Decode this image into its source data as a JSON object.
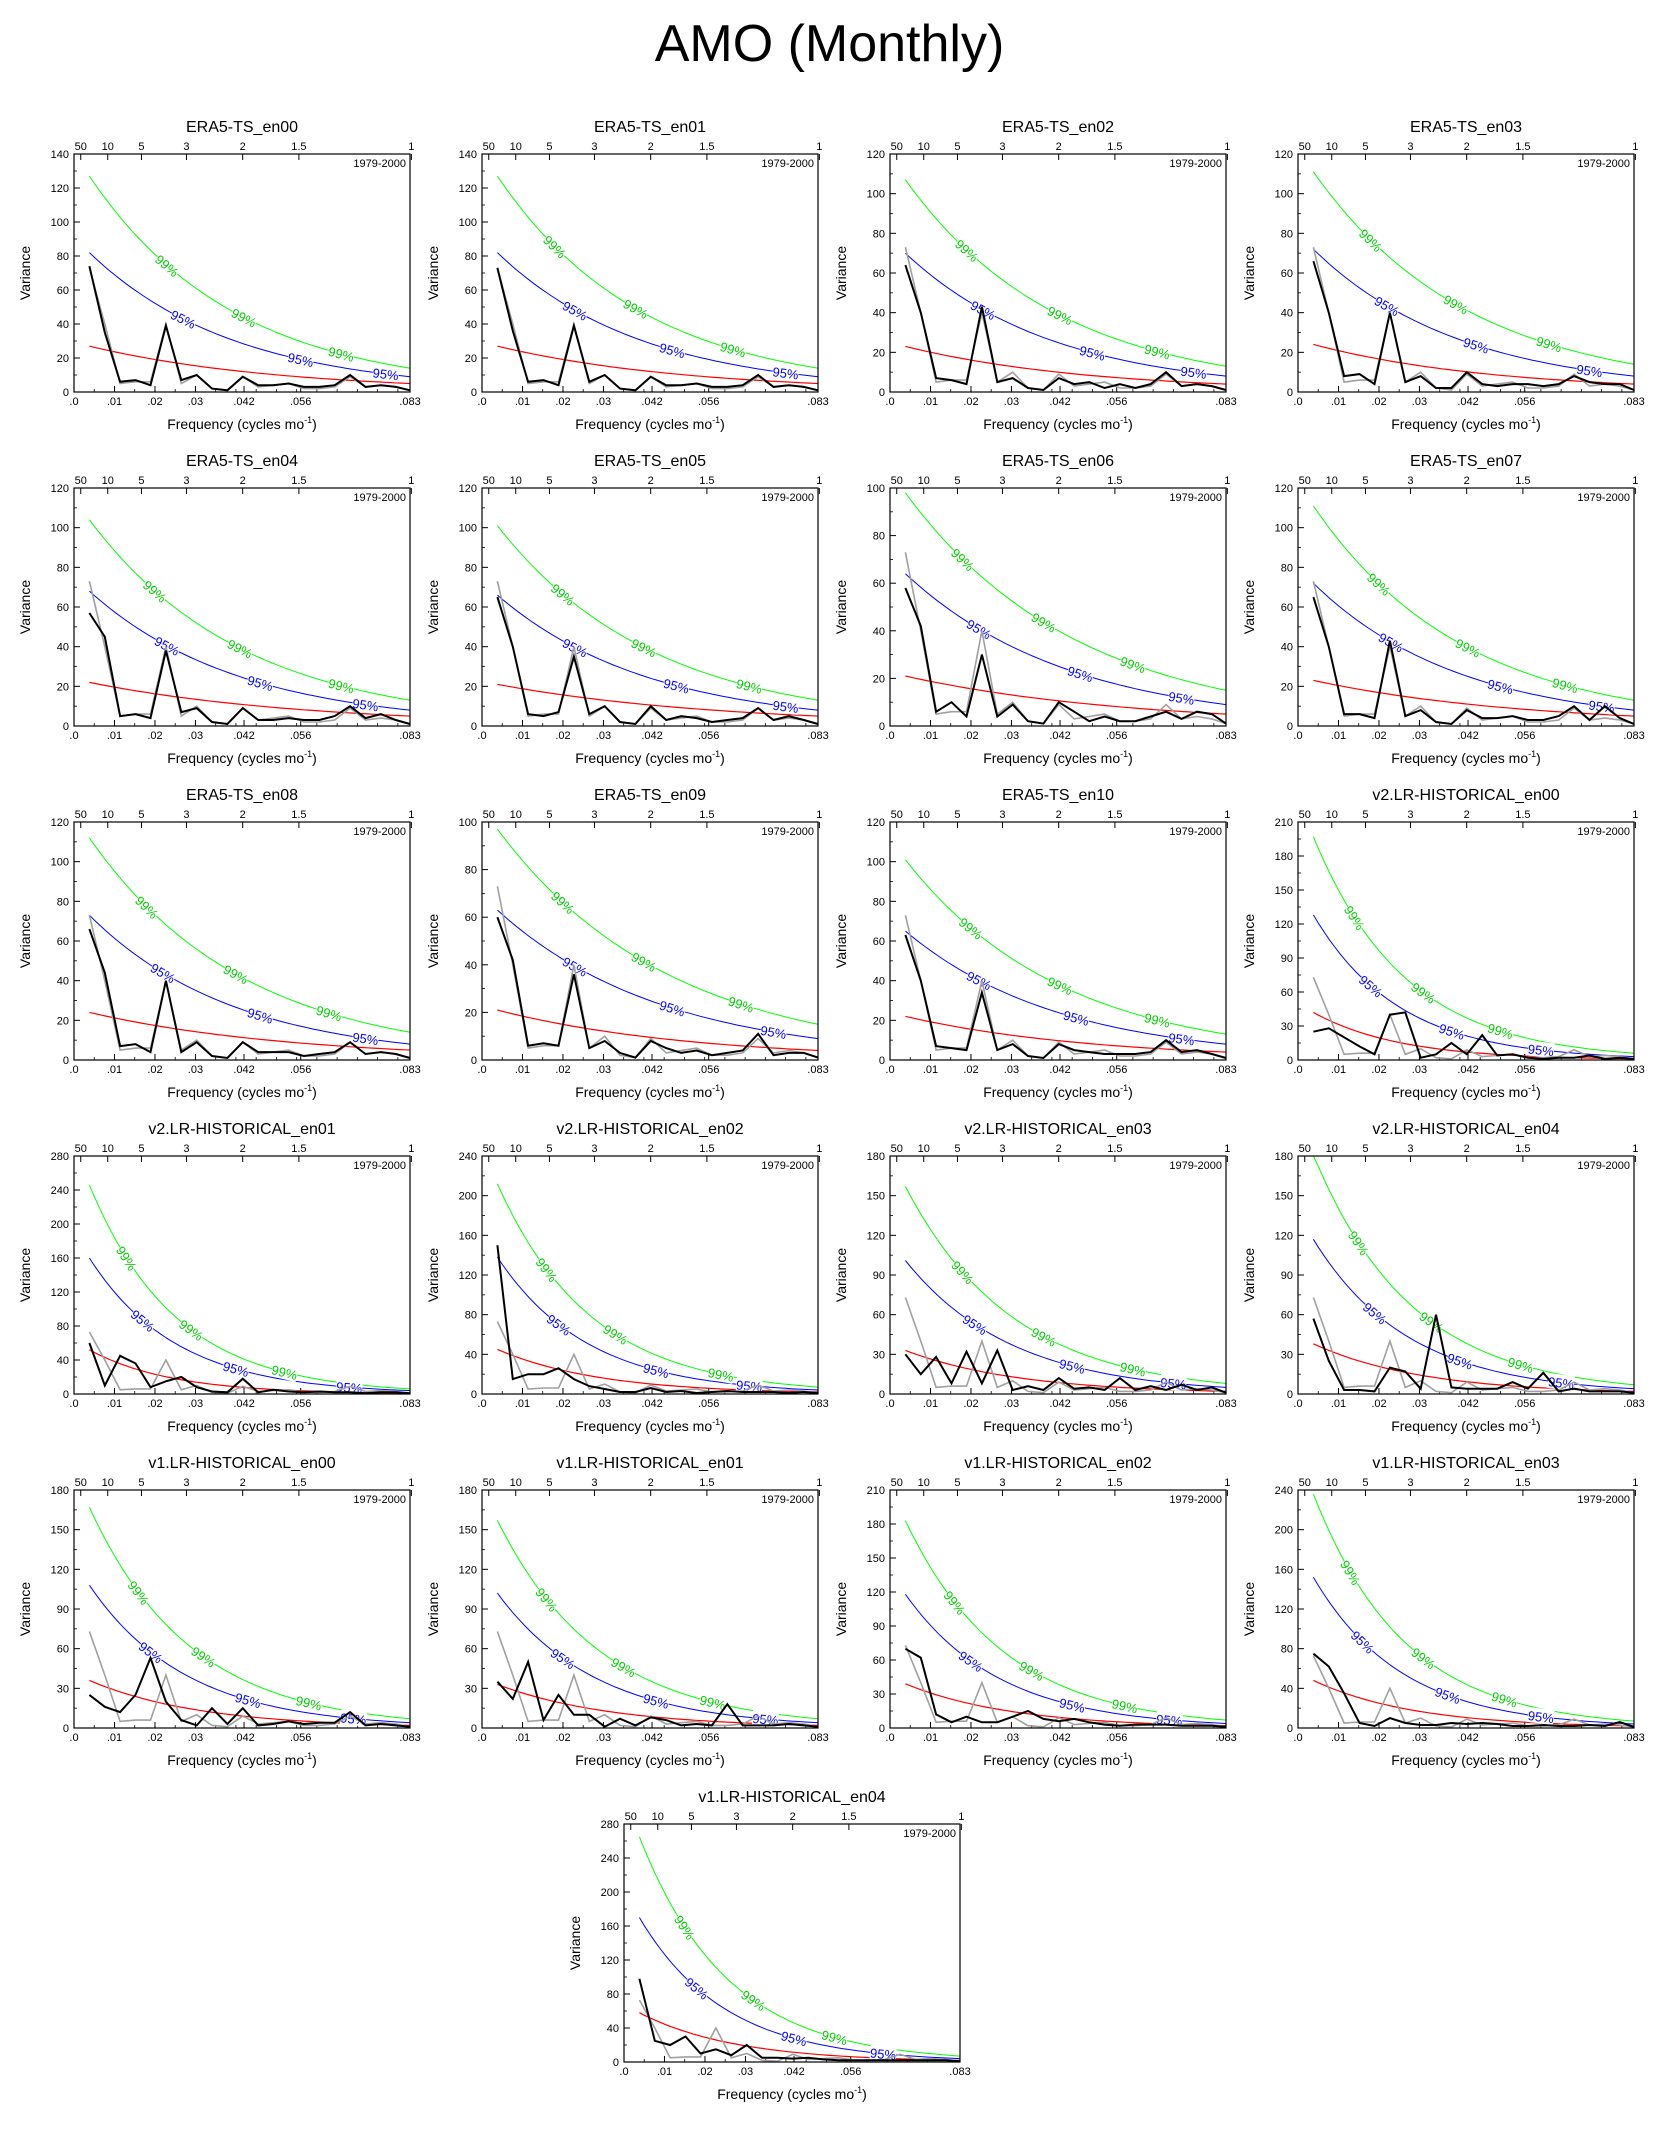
{
  "page": {
    "title": "AMO (Monthly)"
  },
  "common": {
    "period_label": "1979-2000",
    "xlabel_text": "Frequency (cycles mo",
    "xlabel_sup": "-1",
    "xlabel_close": ")",
    "ylabel": "Variance",
    "x_tick_values": [
      0,
      0.01,
      0.02,
      0.03,
      0.042,
      0.056,
      0.083
    ],
    "x_tick_labels": [
      ".0",
      ".01",
      ".02",
      ".03",
      ".042",
      ".056",
      ".083"
    ],
    "period_tick_values": [
      50,
      10,
      5,
      3,
      2,
      1.5,
      1
    ],
    "period_tick_labels": [
      "50",
      "10",
      "5",
      "3",
      "2",
      "1.5",
      "1"
    ],
    "xlim": [
      0,
      0.083
    ],
    "x_freq": [
      0.0038,
      0.0076,
      0.0114,
      0.0152,
      0.0189,
      0.0227,
      0.0265,
      0.0303,
      0.0341,
      0.0379,
      0.0417,
      0.0455,
      0.0492,
      0.053,
      0.0568,
      0.0606,
      0.0644,
      0.0682,
      0.072,
      0.0758,
      0.0795,
      0.083
    ],
    "obs_reference_gray": [
      73,
      40,
      5,
      6,
      6,
      40,
      5,
      10,
      2,
      1,
      9,
      3,
      4,
      5,
      2,
      2,
      3,
      9,
      3,
      4,
      3,
      1
    ],
    "legend_99": "99%",
    "legend_95": "95%",
    "colors": {
      "spectrum": "#000000",
      "obs_gray": "#a0a0a0",
      "red_noise": "#ff0000",
      "ci95": "#0000ff",
      "ci99": "#00ff00"
    }
  },
  "chart_data": [
    {
      "type": "line",
      "title": "ERA5-TS_en00",
      "ylim": [
        0,
        140
      ],
      "yticks": [
        0,
        20,
        40,
        60,
        80,
        100,
        120,
        140
      ],
      "spectrum": [
        74,
        35,
        6,
        7,
        4,
        39,
        7,
        10,
        2,
        1,
        9,
        4,
        4,
        5,
        3,
        3,
        4,
        10,
        3,
        4,
        3,
        1
      ],
      "red_noise": [
        27,
        5
      ],
      "ci95": [
        82,
        9
      ],
      "ci99": [
        127,
        14
      ],
      "show_gray": true,
      "labels95": [
        0.027,
        0.056,
        0.077
      ],
      "labels99": [
        0.023,
        0.042,
        0.066
      ]
    },
    {
      "type": "line",
      "title": "ERA5-TS_en01",
      "ylim": [
        0,
        140
      ],
      "yticks": [
        0,
        20,
        40,
        60,
        80,
        100,
        120,
        140
      ],
      "spectrum": [
        73,
        36,
        6,
        7,
        4,
        39,
        6,
        10,
        2,
        1,
        9,
        4,
        4,
        5,
        3,
        3,
        4,
        10,
        3,
        4,
        3,
        1
      ],
      "red_noise": [
        27,
        5
      ],
      "ci95": [
        82,
        9
      ],
      "ci99": [
        127,
        14
      ],
      "show_gray": true,
      "labels95": [
        0.023,
        0.047,
        0.075
      ],
      "labels99": [
        0.018,
        0.038,
        0.062
      ]
    },
    {
      "type": "line",
      "title": "ERA5-TS_en02",
      "ylim": [
        0,
        120
      ],
      "yticks": [
        0,
        20,
        40,
        60,
        80,
        100,
        120
      ],
      "spectrum": [
        64,
        40,
        7,
        6,
        4,
        43,
        5,
        7,
        2,
        1,
        7,
        4,
        5,
        2,
        4,
        2,
        4,
        10,
        3,
        4,
        3,
        1
      ],
      "red_noise": [
        23,
        4
      ],
      "ci95": [
        70,
        8
      ],
      "ci99": [
        107,
        13
      ],
      "show_gray": true,
      "labels95": [
        0.023,
        0.05,
        0.075
      ],
      "labels99": [
        0.019,
        0.042,
        0.066
      ]
    },
    {
      "type": "line",
      "title": "ERA5-TS_en03",
      "ylim": [
        0,
        120
      ],
      "yticks": [
        0,
        20,
        40,
        60,
        80,
        100,
        120
      ],
      "spectrum": [
        66,
        40,
        8,
        9,
        4,
        40,
        5,
        8,
        2,
        2,
        10,
        4,
        3,
        4,
        4,
        3,
        4,
        8,
        5,
        4,
        4,
        1
      ],
      "red_noise": [
        24,
        4
      ],
      "ci95": [
        72,
        8
      ],
      "ci99": [
        111,
        14
      ],
      "show_gray": true,
      "labels95": [
        0.022,
        0.044,
        0.072
      ],
      "labels99": [
        0.018,
        0.039,
        0.062
      ]
    },
    {
      "type": "line",
      "title": "ERA5-TS_en04",
      "ylim": [
        0,
        120
      ],
      "yticks": [
        0,
        20,
        40,
        60,
        80,
        100,
        120
      ],
      "spectrum": [
        57,
        45,
        5,
        6,
        4,
        38,
        7,
        9,
        2,
        1,
        9,
        3,
        3,
        4,
        3,
        3,
        5,
        10,
        4,
        6,
        3,
        1
      ],
      "red_noise": [
        22,
        5
      ],
      "ci95": [
        68,
        8
      ],
      "ci99": [
        104,
        13
      ],
      "show_gray": true,
      "labels95": [
        0.023,
        0.046,
        0.072
      ],
      "labels99": [
        0.02,
        0.041,
        0.066
      ]
    },
    {
      "type": "line",
      "title": "ERA5-TS_en05",
      "ylim": [
        0,
        120
      ],
      "yticks": [
        0,
        20,
        40,
        60,
        80,
        100,
        120
      ],
      "spectrum": [
        65,
        40,
        6,
        5,
        7,
        35,
        6,
        10,
        2,
        1,
        10,
        3,
        5,
        4,
        2,
        3,
        4,
        9,
        3,
        5,
        3,
        1
      ],
      "red_noise": [
        21,
        5
      ],
      "ci95": [
        66,
        8
      ],
      "ci99": [
        101,
        13
      ],
      "show_gray": true,
      "labels95": [
        0.023,
        0.048,
        0.075
      ],
      "labels99": [
        0.02,
        0.04,
        0.066
      ]
    },
    {
      "type": "line",
      "title": "ERA5-TS_en06",
      "ylim": [
        0,
        100
      ],
      "yticks": [
        0,
        20,
        40,
        60,
        80,
        100
      ],
      "spectrum": [
        58,
        42,
        6,
        10,
        4,
        30,
        4,
        9,
        2,
        1,
        10,
        6,
        2,
        4,
        2,
        2,
        4,
        6,
        3,
        6,
        5,
        1
      ],
      "red_noise": [
        21,
        5
      ],
      "ci95": [
        64,
        9
      ],
      "ci99": [
        98,
        15
      ],
      "show_gray": true,
      "labels95": [
        0.022,
        0.047,
        0.072
      ],
      "labels99": [
        0.018,
        0.038,
        0.06
      ]
    },
    {
      "type": "line",
      "title": "ERA5-TS_en07",
      "ylim": [
        0,
        120
      ],
      "yticks": [
        0,
        20,
        40,
        60,
        80,
        100,
        120
      ],
      "spectrum": [
        65,
        40,
        6,
        6,
        4,
        43,
        5,
        8,
        2,
        1,
        8,
        4,
        4,
        5,
        3,
        3,
        5,
        10,
        3,
        10,
        4,
        1
      ],
      "red_noise": [
        23,
        5
      ],
      "ci95": [
        72,
        8
      ],
      "ci99": [
        111,
        13
      ],
      "show_gray": true,
      "labels95": [
        0.023,
        0.05,
        0.075
      ],
      "labels99": [
        0.02,
        0.042,
        0.066
      ]
    },
    {
      "type": "line",
      "title": "ERA5-TS_en08",
      "ylim": [
        0,
        120
      ],
      "yticks": [
        0,
        20,
        40,
        60,
        80,
        100,
        120
      ],
      "spectrum": [
        66,
        44,
        7,
        8,
        4,
        40,
        4,
        9,
        2,
        1,
        9,
        4,
        4,
        4,
        2,
        3,
        4,
        9,
        3,
        4,
        3,
        1
      ],
      "red_noise": [
        24,
        5
      ],
      "ci95": [
        73,
        8
      ],
      "ci99": [
        112,
        14
      ],
      "show_gray": true,
      "labels95": [
        0.022,
        0.046,
        0.072
      ],
      "labels99": [
        0.018,
        0.04,
        0.063
      ]
    },
    {
      "type": "line",
      "title": "ERA5-TS_en09",
      "ylim": [
        0,
        100
      ],
      "yticks": [
        0,
        20,
        40,
        60,
        80,
        100
      ],
      "spectrum": [
        60,
        42,
        6,
        7,
        6,
        36,
        5,
        8,
        3,
        1,
        8,
        5,
        3,
        4,
        2,
        3,
        4,
        11,
        2,
        3,
        3,
        1
      ],
      "red_noise": [
        21,
        4
      ],
      "ci95": [
        63,
        9
      ],
      "ci99": [
        97,
        15
      ],
      "show_gray": true,
      "labels95": [
        0.023,
        0.047,
        0.072
      ],
      "labels99": [
        0.02,
        0.04,
        0.064
      ]
    },
    {
      "type": "line",
      "title": "ERA5-TS_en10",
      "ylim": [
        0,
        120
      ],
      "yticks": [
        0,
        20,
        40,
        60,
        80,
        100,
        120
      ],
      "spectrum": [
        63,
        40,
        7,
        6,
        5,
        34,
        5,
        8,
        2,
        1,
        8,
        5,
        4,
        3,
        3,
        3,
        4,
        10,
        4,
        5,
        3,
        1
      ],
      "red_noise": [
        22,
        4
      ],
      "ci95": [
        65,
        8
      ],
      "ci99": [
        101,
        13
      ],
      "show_gray": true,
      "labels95": [
        0.022,
        0.046,
        0.072
      ],
      "labels99": [
        0.02,
        0.042,
        0.066
      ]
    },
    {
      "type": "line",
      "title": "v2.LR-HISTORICAL_en00",
      "ylim": [
        0,
        210
      ],
      "yticks": [
        0,
        30,
        60,
        90,
        120,
        150,
        180,
        210
      ],
      "spectrum": [
        25,
        28,
        20,
        12,
        5,
        40,
        42,
        2,
        5,
        15,
        5,
        22,
        4,
        5,
        2,
        1,
        2,
        2,
        4,
        1,
        2,
        1
      ],
      "red_noise": [
        42,
        1
      ],
      "ci95": [
        128,
        3
      ],
      "ci99": [
        197,
        6
      ],
      "show_gray": true,
      "labels95": [
        0.018,
        0.038,
        0.06
      ],
      "labels99": [
        0.014,
        0.031,
        0.05
      ]
    },
    {
      "type": "line",
      "title": "v2.LR-HISTORICAL_en01",
      "ylim": [
        0,
        280
      ],
      "yticks": [
        0,
        40,
        80,
        120,
        160,
        200,
        240,
        280
      ],
      "spectrum": [
        60,
        10,
        45,
        36,
        8,
        15,
        20,
        8,
        3,
        2,
        18,
        2,
        5,
        3,
        2,
        3,
        2,
        2,
        1,
        2,
        2,
        1
      ],
      "red_noise": [
        52,
        1
      ],
      "ci95": [
        160,
        4
      ],
      "ci99": [
        246,
        6
      ],
      "show_gray": true,
      "labels95": [
        0.017,
        0.04,
        0.068
      ],
      "labels99": [
        0.013,
        0.029,
        0.052
      ]
    },
    {
      "type": "line",
      "title": "v2.LR-HISTORICAL_en02",
      "ylim": [
        0,
        240
      ],
      "yticks": [
        0,
        40,
        80,
        120,
        160,
        200,
        240
      ],
      "spectrum": [
        150,
        15,
        20,
        20,
        26,
        15,
        8,
        5,
        2,
        2,
        6,
        2,
        3,
        1,
        2,
        3,
        2,
        2,
        2,
        1,
        2,
        1
      ],
      "red_noise": [
        45,
        2
      ],
      "ci95": [
        138,
        4
      ],
      "ci99": [
        212,
        7
      ],
      "show_gray": true,
      "labels95": [
        0.019,
        0.043,
        0.066
      ],
      "labels99": [
        0.016,
        0.033,
        0.059
      ]
    },
    {
      "type": "line",
      "title": "v2.LR-HISTORICAL_en03",
      "ylim": [
        0,
        180
      ],
      "yticks": [
        0,
        30,
        60,
        90,
        120,
        150,
        180
      ],
      "spectrum": [
        30,
        15,
        28,
        8,
        32,
        8,
        33,
        3,
        6,
        3,
        12,
        4,
        5,
        3,
        12,
        3,
        6,
        3,
        7,
        3,
        5,
        1
      ],
      "red_noise": [
        33,
        2
      ],
      "ci95": [
        101,
        5
      ],
      "ci99": [
        157,
        8
      ],
      "show_gray": true,
      "labels95": [
        0.021,
        0.045,
        0.07
      ],
      "labels99": [
        0.018,
        0.038,
        0.06
      ]
    },
    {
      "type": "line",
      "title": "v2.LR-HISTORICAL_en04",
      "ylim": [
        0,
        180
      ],
      "yticks": [
        0,
        30,
        60,
        90,
        120,
        150,
        180
      ],
      "spectrum": [
        57,
        25,
        3,
        3,
        2,
        20,
        17,
        4,
        60,
        5,
        4,
        4,
        4,
        9,
        4,
        16,
        2,
        4,
        2,
        2,
        2,
        1
      ],
      "red_noise": [
        38,
        2
      ],
      "ci95": [
        117,
        4
      ],
      "ci99": [
        181,
        7
      ],
      "show_gray": true,
      "labels95": [
        0.019,
        0.04,
        0.065
      ],
      "labels99": [
        0.015,
        0.033,
        0.055
      ]
    },
    {
      "type": "line",
      "title": "v1.LR-HISTORICAL_en00",
      "ylim": [
        0,
        180
      ],
      "yticks": [
        0,
        30,
        60,
        90,
        120,
        150,
        180
      ],
      "spectrum": [
        25,
        16,
        12,
        25,
        53,
        20,
        6,
        2,
        15,
        3,
        15,
        2,
        3,
        5,
        3,
        4,
        4,
        12,
        2,
        3,
        2,
        1
      ],
      "red_noise": [
        36,
        2
      ],
      "ci95": [
        108,
        4
      ],
      "ci99": [
        167,
        7
      ],
      "show_gray": true,
      "labels95": [
        0.019,
        0.043,
        0.069
      ],
      "labels99": [
        0.016,
        0.032,
        0.058
      ]
    },
    {
      "type": "line",
      "title": "v1.LR-HISTORICAL_en01",
      "ylim": [
        0,
        180
      ],
      "yticks": [
        0,
        30,
        60,
        90,
        120,
        150,
        180
      ],
      "spectrum": [
        35,
        22,
        50,
        6,
        25,
        10,
        10,
        1,
        7,
        2,
        8,
        6,
        2,
        3,
        2,
        18,
        2,
        2,
        2,
        3,
        2,
        1
      ],
      "red_noise": [
        33,
        2
      ],
      "ci95": [
        102,
        4
      ],
      "ci99": [
        157,
        7
      ],
      "show_gray": true,
      "labels95": [
        0.02,
        0.043,
        0.07
      ],
      "labels99": [
        0.016,
        0.035,
        0.057
      ]
    },
    {
      "type": "line",
      "title": "v1.LR-HISTORICAL_en02",
      "ylim": [
        0,
        210
      ],
      "yticks": [
        0,
        30,
        60,
        90,
        120,
        150,
        180,
        210
      ],
      "spectrum": [
        70,
        62,
        12,
        5,
        10,
        5,
        5,
        10,
        15,
        8,
        6,
        8,
        5,
        3,
        2,
        3,
        3,
        3,
        2,
        2,
        2,
        1
      ],
      "red_noise": [
        39,
        2
      ],
      "ci95": [
        118,
        4
      ],
      "ci99": [
        183,
        7
      ],
      "show_gray": true,
      "labels95": [
        0.02,
        0.045,
        0.069
      ],
      "labels99": [
        0.016,
        0.035,
        0.058
      ]
    },
    {
      "type": "line",
      "title": "v1.LR-HISTORICAL_en03",
      "ylim": [
        0,
        240
      ],
      "yticks": [
        0,
        40,
        80,
        120,
        160,
        200,
        240
      ],
      "spectrum": [
        75,
        62,
        35,
        5,
        2,
        10,
        5,
        3,
        3,
        5,
        4,
        5,
        4,
        2,
        2,
        3,
        2,
        2,
        3,
        2,
        6,
        1
      ],
      "red_noise": [
        48,
        2
      ],
      "ci95": [
        152,
        4
      ],
      "ci99": [
        236,
        7
      ],
      "show_gray": true,
      "labels95": [
        0.016,
        0.037,
        0.06
      ],
      "labels99": [
        0.013,
        0.031,
        0.051
      ]
    },
    {
      "type": "line",
      "title": "v1.LR-HISTORICAL_en04",
      "ylim": [
        0,
        280
      ],
      "yticks": [
        0,
        40,
        80,
        120,
        160,
        200,
        240,
        280
      ],
      "spectrum": [
        98,
        25,
        20,
        30,
        10,
        15,
        8,
        20,
        5,
        5,
        4,
        5,
        3,
        2,
        2,
        2,
        2,
        2,
        2,
        2,
        2,
        1
      ],
      "red_noise": [
        58,
        2
      ],
      "ci95": [
        170,
        4
      ],
      "ci99": [
        265,
        7
      ],
      "show_gray": true,
      "labels95": [
        0.018,
        0.042,
        0.064
      ],
      "labels99": [
        0.015,
        0.032,
        0.052
      ]
    }
  ]
}
